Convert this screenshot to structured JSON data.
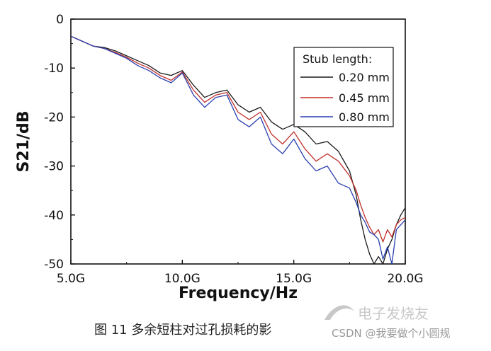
{
  "chart_data": {
    "type": "line",
    "title": "",
    "xlabel": "Frequency/Hz",
    "ylabel": "S21/dB",
    "xlim": [
      5.0,
      20.0
    ],
    "ylim": [
      -50,
      0
    ],
    "x_ticks": [
      5.0,
      10.0,
      15.0,
      20.0
    ],
    "x_tick_labels": [
      "5.0G",
      "10.0G",
      "15.0G",
      "20.0G"
    ],
    "y_ticks": [
      0,
      -10,
      -20,
      -30,
      -40,
      -50
    ],
    "y_tick_labels": [
      "0",
      "-10",
      "-20",
      "-30",
      "-40",
      "-50"
    ],
    "grid": false,
    "legend": {
      "title": "Stub length:",
      "placement": "top-right"
    },
    "series": [
      {
        "name": "0.20 mm",
        "color": "#1a1a1a",
        "x": [
          5.0,
          5.5,
          6.0,
          6.5,
          7.0,
          7.5,
          8.0,
          8.5,
          9.0,
          9.5,
          10.0,
          10.5,
          11.0,
          11.5,
          12.0,
          12.5,
          13.0,
          13.5,
          14.0,
          14.5,
          15.0,
          15.5,
          16.0,
          16.5,
          17.0,
          17.5,
          17.8,
          18.0,
          18.2,
          18.4,
          18.6,
          18.8,
          19.0,
          19.2,
          19.4,
          19.6,
          19.8,
          20.0
        ],
        "y": [
          -3.5,
          -4.5,
          -5.5,
          -5.8,
          -6.5,
          -7.5,
          -8.5,
          -9.5,
          -11.0,
          -11.5,
          -10.5,
          -13.5,
          -16.0,
          -15.0,
          -14.5,
          -17.5,
          -19.0,
          -18.0,
          -21.0,
          -22.5,
          -21.5,
          -23.0,
          -25.5,
          -25.0,
          -27.0,
          -31.0,
          -36.0,
          -41.0,
          -45.0,
          -48.0,
          -50.0,
          -48.5,
          -50.0,
          -47.0,
          -45.0,
          -42.0,
          -40.0,
          -38.5
        ]
      },
      {
        "name": "0.45 mm",
        "color": "#c0302a",
        "x": [
          5.0,
          5.5,
          6.0,
          6.5,
          7.0,
          7.5,
          8.0,
          8.5,
          9.0,
          9.5,
          10.0,
          10.5,
          11.0,
          11.5,
          12.0,
          12.5,
          13.0,
          13.5,
          14.0,
          14.5,
          15.0,
          15.5,
          16.0,
          16.5,
          17.0,
          17.5,
          17.8,
          18.0,
          18.2,
          18.4,
          18.6,
          18.8,
          19.0,
          19.2,
          19.4,
          19.6,
          19.8,
          20.0
        ],
        "y": [
          -3.5,
          -4.5,
          -5.5,
          -6.0,
          -6.8,
          -7.8,
          -9.0,
          -10.0,
          -11.5,
          -12.5,
          -10.8,
          -14.5,
          -17.0,
          -15.5,
          -15.0,
          -19.0,
          -20.5,
          -19.0,
          -23.5,
          -25.5,
          -23.0,
          -26.5,
          -29.0,
          -27.5,
          -29.0,
          -32.0,
          -35.0,
          -38.0,
          -40.5,
          -42.5,
          -44.0,
          -43.0,
          -45.5,
          -43.0,
          -44.5,
          -42.0,
          -41.0,
          -40.5
        ]
      },
      {
        "name": "0.80 mm",
        "color": "#2a3fb0",
        "x": [
          5.0,
          5.5,
          6.0,
          6.5,
          7.0,
          7.5,
          8.0,
          8.5,
          9.0,
          9.5,
          10.0,
          10.5,
          11.0,
          11.5,
          12.0,
          12.5,
          13.0,
          13.5,
          14.0,
          14.5,
          15.0,
          15.5,
          16.0,
          16.5,
          17.0,
          17.5,
          17.8,
          18.0,
          18.2,
          18.4,
          18.6,
          18.8,
          19.0,
          19.2,
          19.4,
          19.6,
          19.8,
          20.0
        ],
        "y": [
          -3.5,
          -4.5,
          -5.5,
          -6.0,
          -7.0,
          -8.0,
          -9.5,
          -10.5,
          -12.0,
          -13.0,
          -11.0,
          -15.5,
          -18.0,
          -16.0,
          -15.5,
          -20.5,
          -22.0,
          -20.0,
          -25.5,
          -27.5,
          -24.5,
          -28.5,
          -31.0,
          -30.0,
          -33.5,
          -34.5,
          -37.5,
          -40.0,
          -41.5,
          -43.5,
          -44.0,
          -45.0,
          -49.0,
          -46.5,
          -50.0,
          -43.0,
          -42.0,
          -41.0
        ]
      }
    ]
  },
  "caption": "图 11  多余短柱对过孔损耗的影",
  "watermark": {
    "logo_text": "电子发烧友",
    "credit": "CSDN @我要做个小圆规"
  }
}
